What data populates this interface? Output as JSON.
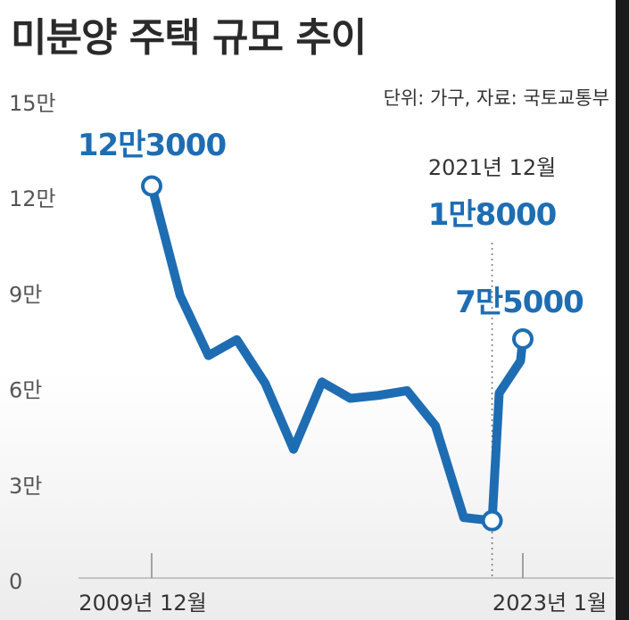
{
  "header": {
    "title": "미분양 주택 규모 추이",
    "unit_source": "단위: 가구, 자료: 국토교통부"
  },
  "chart_data": {
    "type": "line",
    "title": "미분양 주택 규모 추이",
    "unit": "가구",
    "source": "국토교통부",
    "ylim": [
      0,
      150000
    ],
    "yticks": [
      0,
      30000,
      60000,
      90000,
      120000,
      150000
    ],
    "ytick_labels": [
      "0",
      "3만",
      "6만",
      "9만",
      "12만",
      "15만"
    ],
    "x_start_label": "2009년 12월",
    "x_end_label": "2023년 1월",
    "x": [
      "2009-12",
      "2010-12",
      "2011-12",
      "2012-12",
      "2013-12",
      "2014-12",
      "2015-12",
      "2016-12",
      "2017-12",
      "2018-12",
      "2019-12",
      "2020-12",
      "2021-12",
      "2022-03",
      "2022-12",
      "2023-01"
    ],
    "values": [
      123000,
      88700,
      69800,
      74800,
      61100,
      40400,
      61500,
      56400,
      57300,
      58800,
      47800,
      19000,
      18000,
      58000,
      68100,
      75000
    ],
    "color": "#1e6db3",
    "annotations": [
      {
        "label": "12만3000",
        "x": "2009-12"
      },
      {
        "label": "1만8000",
        "x": "2021-12",
        "date": "2021년 12월"
      },
      {
        "label": "7만5000",
        "x": "2023-01"
      }
    ],
    "grid": false,
    "legend": "none"
  }
}
